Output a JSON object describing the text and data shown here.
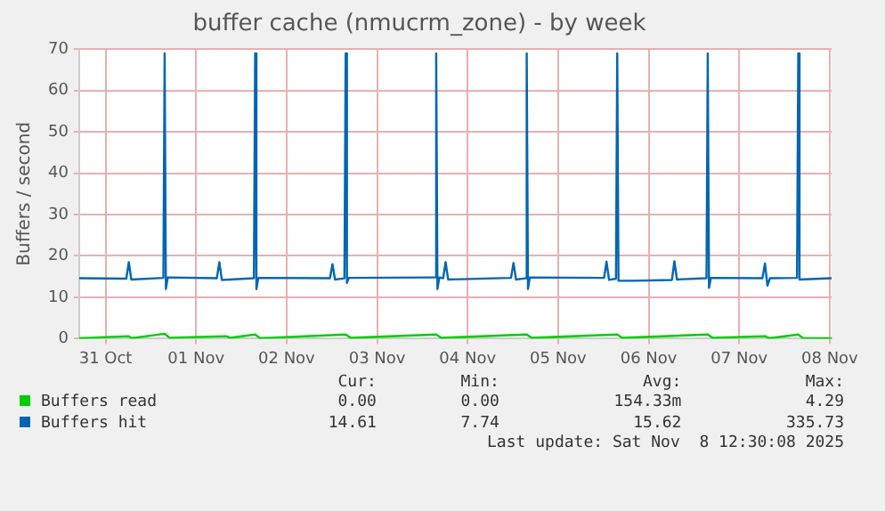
{
  "chart_data": {
    "type": "line",
    "title": "buffer cache (nmucrm_zone) - by week",
    "ylabel": "Buffers / second",
    "xlim": [
      "2025-10-31T05:00",
      "2025-11-08T12:30"
    ],
    "xticks": [
      {
        "value": "2025-10-31T12:00",
        "label": "31 Oct"
      },
      {
        "value": "2025-11-01T12:00",
        "label": "01 Nov"
      },
      {
        "value": "2025-11-02T12:00",
        "label": "02 Nov"
      },
      {
        "value": "2025-11-03T12:00",
        "label": "03 Nov"
      },
      {
        "value": "2025-11-04T12:00",
        "label": "04 Nov"
      },
      {
        "value": "2025-11-05T12:00",
        "label": "05 Nov"
      },
      {
        "value": "2025-11-06T12:00",
        "label": "06 Nov"
      },
      {
        "value": "2025-11-07T12:00",
        "label": "07 Nov"
      },
      {
        "value": "2025-11-08T12:00",
        "label": "08 Nov"
      }
    ],
    "ylim": [
      0,
      70
    ],
    "yticks": [
      0,
      10,
      20,
      30,
      40,
      50,
      60,
      70
    ],
    "grid": true,
    "legend": "bottom",
    "marker": "none",
    "line_style": "solid",
    "annotations": [
      "Cur:",
      "Min:",
      "Avg:",
      "Max:",
      "0.00",
      "0.00",
      "154.33m",
      "4.29",
      "14.61",
      "7.74",
      "15.62",
      "335.73",
      "Last update: Sat Nov  8 12:30:08 2025"
    ],
    "series": [
      {
        "name": "Buffers read",
        "color": "#00cc00",
        "x": [
          "2025-10-31T05:00",
          "2025-10-31T18:10",
          "2025-10-31T18:50",
          "2025-11-01T03:40",
          "2025-11-01T05:00",
          "2025-11-01T20:00",
          "2025-11-01T21:00",
          "2025-11-02T03:40",
          "2025-11-02T05:00",
          "2025-11-03T03:40",
          "2025-11-03T05:00",
          "2025-11-04T03:40",
          "2025-11-04T05:00",
          "2025-11-05T03:40",
          "2025-11-05T05:00",
          "2025-11-06T03:40",
          "2025-11-06T05:00",
          "2025-11-07T03:40",
          "2025-11-07T05:00",
          "2025-11-07T18:50",
          "2025-11-07T20:00",
          "2025-11-08T03:40",
          "2025-11-08T05:00",
          "2025-11-08T12:30"
        ],
        "values": [
          0.1,
          0.6,
          0.1,
          1.2,
          0.2,
          0.6,
          0.2,
          1.0,
          0.1,
          1.0,
          0.2,
          1.0,
          0.2,
          1.0,
          0.2,
          1.0,
          0.2,
          1.0,
          0.2,
          0.6,
          0.1,
          1.0,
          0.1,
          0.1
        ]
      },
      {
        "name": "Buffers hit",
        "color": "#0066b3",
        "x": [
          "2025-10-31T05:00",
          "2025-10-31T17:30",
          "2025-10-31T18:10",
          "2025-10-31T18:50",
          "2025-11-01T03:20",
          "2025-11-01T03:40",
          "2025-11-01T04:00",
          "2025-11-01T04:30",
          "2025-11-01T17:30",
          "2025-11-01T18:10",
          "2025-11-01T18:50",
          "2025-11-02T03:20",
          "2025-11-02T03:40",
          "2025-11-02T04:00",
          "2025-11-02T04:30",
          "2025-11-02T23:30",
          "2025-11-03T00:10",
          "2025-11-03T00:50",
          "2025-11-03T03:20",
          "2025-11-03T03:40",
          "2025-11-03T04:00",
          "2025-11-03T04:30",
          "2025-11-04T03:20",
          "2025-11-04T03:40",
          "2025-11-04T04:00",
          "2025-11-04T04:30",
          "2025-11-04T05:30",
          "2025-11-04T06:10",
          "2025-11-04T06:50",
          "2025-11-04T23:30",
          "2025-11-05T00:10",
          "2025-11-05T00:50",
          "2025-11-05T03:20",
          "2025-11-05T03:40",
          "2025-11-05T04:00",
          "2025-11-05T04:30",
          "2025-11-06T00:10",
          "2025-11-06T00:50",
          "2025-11-06T01:30",
          "2025-11-06T03:20",
          "2025-11-06T03:40",
          "2025-11-06T04:00",
          "2025-11-06T08:00",
          "2025-11-06T18:10",
          "2025-11-06T18:50",
          "2025-11-06T19:30",
          "2025-11-07T03:20",
          "2025-11-07T03:40",
          "2025-11-07T04:00",
          "2025-11-07T04:30",
          "2025-11-07T18:10",
          "2025-11-07T18:50",
          "2025-11-07T19:30",
          "2025-11-07T20:10",
          "2025-11-08T03:20",
          "2025-11-08T03:40",
          "2025-11-08T04:00",
          "2025-11-08T12:30"
        ],
        "values": [
          14.6,
          14.5,
          18.5,
          14.3,
          14.7,
          69,
          12,
          14.8,
          14.6,
          18.5,
          14.2,
          14.6,
          69,
          12,
          14.7,
          14.6,
          18,
          14.3,
          14.6,
          69,
          13.5,
          14.7,
          14.8,
          69,
          12,
          14.8,
          14.6,
          18.5,
          14.3,
          14.7,
          18.3,
          14.3,
          14.6,
          69,
          12,
          14.8,
          14.7,
          18.6,
          14.2,
          14.5,
          69,
          14,
          14,
          14.2,
          18.7,
          14.3,
          14.6,
          69,
          12.3,
          14.7,
          14.6,
          18.2,
          12.8,
          14.6,
          14.7,
          69,
          14.3,
          14.6
        ]
      }
    ]
  }
}
